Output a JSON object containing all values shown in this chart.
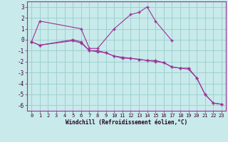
{
  "xlabel": "Windchill (Refroidissement éolien,°C)",
  "background_color": "#c8eaea",
  "line_color": "#993399",
  "grid_color": "#99cccc",
  "spine_color": "#993399",
  "hours": [
    0,
    1,
    2,
    3,
    4,
    5,
    6,
    7,
    8,
    9,
    10,
    11,
    12,
    13,
    14,
    15,
    16,
    17,
    18,
    19,
    20,
    21,
    22,
    23
  ],
  "temp1": [
    -0.2,
    1.7,
    null,
    null,
    null,
    null,
    1.0,
    -0.8,
    -0.8,
    null,
    1.0,
    null,
    2.3,
    2.5,
    3.0,
    1.7,
    null,
    -0.1,
    null,
    null,
    null,
    null,
    null,
    null
  ],
  "temp2": [
    -0.2,
    -0.5,
    null,
    null,
    null,
    0.0,
    -0.2,
    -1.0,
    -1.0,
    -1.2,
    -1.5,
    -1.7,
    -1.7,
    -1.8,
    -1.9,
    -1.9,
    -2.1,
    -2.5,
    -2.6,
    -2.6,
    -3.5,
    -5.0,
    -5.8,
    -5.9
  ],
  "temp3": [
    -0.2,
    -0.5,
    null,
    null,
    null,
    -0.1,
    -0.3,
    -1.0,
    -1.1,
    -1.2,
    -1.5,
    -1.6,
    -1.7,
    -1.8,
    -1.9,
    -2.0,
    -2.1,
    -2.5,
    -2.6,
    -2.7,
    -3.5,
    -5.0,
    -5.8,
    -5.9
  ],
  "ylim": [
    -6.5,
    3.5
  ],
  "yticks": [
    -6,
    -5,
    -4,
    -3,
    -2,
    -1,
    0,
    1,
    2,
    3
  ],
  "xlim": [
    -0.5,
    23.5
  ]
}
